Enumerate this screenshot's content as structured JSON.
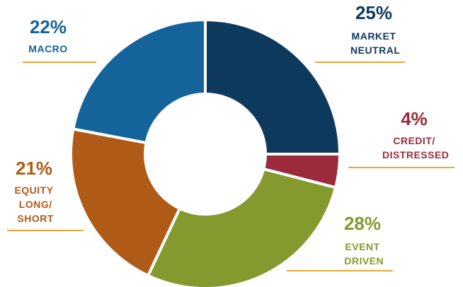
{
  "chart_data": {
    "type": "donut",
    "categories": [
      "MARKET NEUTRAL",
      "CREDIT/ DISTRESSED",
      "EVENT DRIVEN",
      "EQUITY LONG/ SHORT",
      "MACRO"
    ],
    "values": [
      25,
      4,
      28,
      21,
      22
    ],
    "value_labels": [
      "25%",
      "4%",
      "28%",
      "21%",
      "22%"
    ],
    "colors": [
      "#0d3a5c",
      "#9b2b3c",
      "#84992e",
      "#b05a17",
      "#14639b"
    ],
    "underline_color": "#e8a838"
  }
}
